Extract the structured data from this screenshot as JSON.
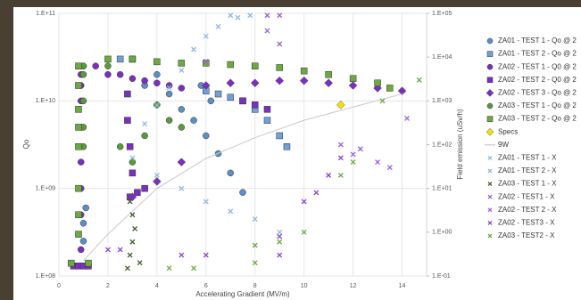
{
  "chart_data": {
    "type": "scatter",
    "xlabel": "Accelerating Gradient (MV/m)",
    "ylabel": "Qo",
    "y2label": "Field emission (uSv/h)",
    "xlim": [
      0,
      15
    ],
    "xticks": [
      0,
      2,
      4,
      6,
      8,
      10,
      12,
      14
    ],
    "ylim": [
      100000000,
      100000000000
    ],
    "ylog": true,
    "yticks": [
      {
        "value": 100000000,
        "label": "1.E+08"
      },
      {
        "value": 1000000000,
        "label": "1.E+09"
      },
      {
        "value": 10000000000,
        "label": "1.E+10"
      },
      {
        "value": 100000000000,
        "label": "1.E+11"
      }
    ],
    "y2lim": [
      0.1,
      100000
    ],
    "y2log": true,
    "y2ticks": [
      {
        "value": 0.1,
        "label": "1.E-01"
      },
      {
        "value": 1,
        "label": "1.E+00"
      },
      {
        "value": 10,
        "label": "1.E+01"
      },
      {
        "value": 100,
        "label": "1.E+02"
      },
      {
        "value": 1000,
        "label": "1.E+03"
      },
      {
        "value": 10000,
        "label": "1.E+04"
      },
      {
        "value": 100000,
        "label": "1.E+05"
      }
    ],
    "grid": true,
    "legend": "right",
    "series": [
      {
        "name": "ZA01 - TEST 1 - Qo @ 2",
        "marker": "circle",
        "color": "#5b8fc7",
        "x": [
          1,
          1,
          1.1,
          3.5,
          4,
          4.5,
          5,
          5.5,
          5.8,
          6,
          6.2,
          6.5,
          7,
          7.5
        ],
        "values": [
          250000000,
          400000000,
          600000000,
          15000000000,
          20000000000,
          12000000000,
          8000000000,
          6000000000,
          15000000000,
          4000000000,
          10000000000,
          2500000000,
          1500000000,
          900000000
        ]
      },
      {
        "name": "ZA01 - TEST 2 - Qo @ 2",
        "marker": "square",
        "color": "#6fa0d8",
        "x": [
          2.5,
          3,
          6,
          6.5,
          7,
          7.5,
          8,
          8.5,
          9,
          9.3
        ],
        "values": [
          30000000000,
          30000000000,
          13000000000,
          12000000000,
          11000000000,
          10000000000,
          8000000000,
          6000000000,
          4000000000,
          3000000000
        ]
      },
      {
        "name": "ZA02 - TEST 1 - Q0 @ 2",
        "marker": "circle",
        "color": "#7b2fbe",
        "x": [
          0.9,
          0.9,
          0.9,
          0.9,
          0.9,
          0.9,
          0.9,
          0.9,
          1,
          1.5,
          2,
          2.5,
          3,
          3.5,
          4,
          4.5,
          5,
          0.8,
          1.2
        ],
        "values": [
          20000000000,
          15000000000,
          10000000000,
          5000000000,
          2000000000,
          1000000000,
          500000000,
          200000000,
          25000000000,
          25000000000,
          20000000000,
          20000000000,
          18000000000,
          17000000000,
          16000000000,
          15000000000,
          14000000000,
          130000000,
          130000000
        ]
      },
      {
        "name": "ZA02 - TEST 2 - Q0 @ 2",
        "marker": "square",
        "color": "#7b2fbe",
        "x": [
          0.6,
          0.8,
          1,
          1.2,
          2.8,
          2.8,
          2.9,
          2.9,
          3,
          3.2,
          3.5,
          7.5,
          8,
          8.5
        ],
        "values": [
          130000000,
          130000000,
          130000000,
          130000000,
          12000000000,
          6000000000,
          3000000000,
          800000000,
          1500000000,
          900000000,
          1000000000,
          10000000000,
          9000000000,
          8000000000
        ]
      },
      {
        "name": "ZA02 - TEST 3 - Qo @ 2",
        "marker": "diamond",
        "color": "#7b2fbe",
        "x": [
          3,
          4,
          5,
          6,
          7,
          8,
          9,
          10,
          11,
          12,
          13,
          14
        ],
        "values": [
          800000000,
          1200000000,
          2000000000,
          15000000000,
          16000000000,
          16000000000,
          17000000000,
          17000000000,
          16000000000,
          15000000000,
          14000000000,
          13000000000
        ]
      },
      {
        "name": "ZA03 - TEST 1 - Qo @ 2",
        "marker": "circle",
        "color": "#5a9a3a",
        "x": [
          1,
          1,
          1,
          1,
          1,
          2,
          2.5,
          3,
          3.5,
          4,
          4.5,
          5
        ],
        "values": [
          25000000000,
          20000000000,
          10000000000,
          5000000000,
          3000000000,
          25000000000,
          3000000000,
          2000000000,
          4000000000,
          9000000000,
          6000000000,
          5000000000
        ]
      },
      {
        "name": "ZA03 - TEST 2 - Qo @ 2",
        "marker": "square",
        "color": "#6aaa40",
        "x": [
          0.8,
          0.8,
          0.8,
          0.8,
          0.8,
          0.8,
          0.8,
          0.8,
          0.5,
          1.2,
          2,
          3,
          4,
          5,
          6,
          7,
          8,
          9,
          10,
          11,
          12,
          13,
          13.5
        ],
        "values": [
          25000000000,
          15000000000,
          8000000000,
          5000000000,
          3000000000,
          1000000000,
          500000000,
          300000000,
          140000000,
          140000000,
          30000000000,
          30000000000,
          28000000000,
          27000000000,
          27000000000,
          26000000000,
          25000000000,
          24000000000,
          22000000000,
          20000000000,
          18000000000,
          16000000000,
          14000000000
        ]
      },
      {
        "name": "Specs",
        "marker": "diamond",
        "color": "#f5e000",
        "x": [
          11.5
        ],
        "values": [
          9000000000
        ]
      },
      {
        "name": "9W",
        "marker": "line",
        "color": "#c8c8c8",
        "x": [
          1,
          2,
          4,
          6,
          8,
          10,
          12,
          14
        ],
        "values": [
          150000000,
          300000000,
          1000000000,
          2200000000,
          3800000000,
          6000000000,
          8500000000,
          12000000000
        ]
      },
      {
        "name": "ZA01 - TEST 1 - X",
        "marker": "x",
        "color": "#8fb8e0",
        "axis": "y2",
        "x": [
          3.5,
          4,
          4.5,
          5,
          5.5,
          6,
          6.5,
          7,
          7.3,
          7.8
        ],
        "values": [
          300,
          800,
          2000,
          5000,
          15000,
          30000,
          50000,
          90000,
          80000,
          90000
        ]
      },
      {
        "name": "ZA01 - TEST 2 - X",
        "marker": "x",
        "color": "#8fb8e0",
        "axis": "y2",
        "x": [
          3,
          4,
          5,
          6,
          7,
          8,
          9
        ],
        "values": [
          50,
          20,
          10,
          5,
          3,
          2,
          1
        ]
      },
      {
        "name": "ZA03 - TEST 1 - X",
        "marker": "x",
        "color": "#3d5a2a",
        "axis": "y2",
        "x": [
          2.8,
          2.9,
          3,
          3.1,
          3,
          2.9,
          3.3
        ],
        "values": [
          0.15,
          0.3,
          0.6,
          1.2,
          2.5,
          5,
          0.2
        ]
      },
      {
        "name": "ZA02 - TEST1 - X",
        "marker": "x",
        "color": "#9a5fd6",
        "axis": "y2",
        "x": [
          8.5,
          9,
          8.5,
          9,
          6,
          14.2
        ],
        "values": [
          90000,
          90000,
          40000,
          20000,
          8000,
          400
        ]
      },
      {
        "name": "ZA02 - TEST 2 - X",
        "marker": "x",
        "color": "#9a5fd6",
        "axis": "y2",
        "x": [
          11.5,
          12,
          12.3,
          13,
          13.5
        ],
        "values": [
          100,
          60,
          80,
          40,
          30
        ]
      },
      {
        "name": "ZA02 - TEST3 - X",
        "marker": "x",
        "color": "#8a3fd0",
        "axis": "y2",
        "x": [
          2,
          2.5,
          5,
          6,
          9,
          9,
          10,
          10.5,
          11,
          11.5
        ],
        "values": [
          0.4,
          0.4,
          0.3,
          0.3,
          0.3,
          0.8,
          5,
          8,
          20,
          50
        ]
      },
      {
        "name": "ZA03 - TEST2 - X",
        "marker": "x",
        "color": "#6aaa40",
        "axis": "y2",
        "x": [
          4.5,
          5.5,
          8,
          8,
          9,
          10,
          11.5,
          12,
          13.2,
          14.7
        ],
        "values": [
          0.15,
          0.15,
          0.2,
          0.5,
          0.6,
          1,
          20,
          40,
          1000,
          3000
        ]
      }
    ]
  }
}
